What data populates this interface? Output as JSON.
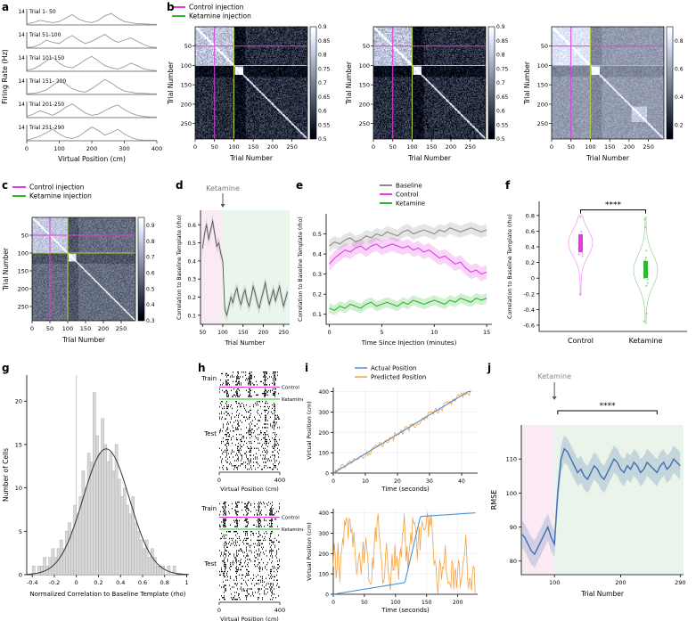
{
  "panels": {
    "a": {
      "label": "a"
    },
    "b": {
      "label": "b"
    },
    "c": {
      "label": "c"
    },
    "d": {
      "label": "d"
    },
    "e": {
      "label": "e"
    },
    "f": {
      "label": "f"
    },
    "g": {
      "label": "g"
    },
    "h": {
      "label": "h"
    },
    "i": {
      "label": "i"
    },
    "j": {
      "label": "j"
    }
  },
  "colors": {
    "control": "#e33ae3",
    "ketamine": "#2eb82e",
    "ketamine_line": "#b4d438",
    "baseline": "#8a8a8a",
    "actual": "#4a90d2",
    "predicted": "#f5a142",
    "rmse": "#3f6fae"
  },
  "chart_data": [
    {
      "id": "a",
      "type": "line-stack",
      "ylabel": "Firing Rate (Hz)",
      "xlabel": "Virtual Position (cm)",
      "xticks": [
        0,
        100,
        200,
        300,
        400
      ],
      "xlim": [
        0,
        400
      ],
      "ymax": 14,
      "ytick_label": "14",
      "line_color": "#9a9a9a",
      "traces": [
        {
          "label": "Trial 1- 50",
          "values": [
            1,
            2,
            4,
            3,
            2,
            3,
            6,
            9,
            5,
            3,
            2,
            4,
            8,
            10,
            6,
            3,
            2,
            1,
            1,
            0.5,
            0.5
          ]
        },
        {
          "label": "Trial 51-100",
          "values": [
            0.5,
            1,
            3,
            7,
            5,
            4,
            8,
            11,
            7,
            4,
            6,
            9,
            12,
            8,
            5,
            7,
            9,
            6,
            3,
            1,
            0.5
          ]
        },
        {
          "label": "Trial 101-150",
          "values": [
            1,
            2,
            5,
            9,
            12,
            7,
            4,
            3,
            6,
            10,
            13,
            9,
            5,
            3,
            2,
            4,
            7,
            5,
            2,
            1,
            0.5
          ]
        },
        {
          "label": "Trial 151- 200",
          "values": [
            0.5,
            1,
            2,
            4,
            8,
            12,
            9,
            5,
            3,
            2,
            5,
            9,
            13,
            10,
            6,
            3,
            2,
            1,
            1,
            0.5,
            0.5
          ]
        },
        {
          "label": "Trial 201-250",
          "values": [
            1,
            3,
            6,
            4,
            2,
            5,
            9,
            12,
            8,
            4,
            2,
            3,
            6,
            9,
            11,
            7,
            4,
            2,
            1,
            0.5,
            0.5
          ]
        },
        {
          "label": "Trial 251-290",
          "values": [
            0.5,
            2,
            4,
            7,
            10,
            6,
            3,
            2,
            4,
            8,
            12,
            9,
            5,
            7,
            10,
            6,
            3,
            1,
            0.5,
            0.5,
            0.5
          ]
        }
      ]
    },
    {
      "id": "b",
      "type": "heatmap-row",
      "legend": [
        {
          "label": "Control injection",
          "color_key": "control"
        },
        {
          "label": "Ketamine injection",
          "color_key": "ketamine"
        }
      ],
      "xlabel": "Trial Number",
      "ylabel": "Trial Number",
      "xticks": [
        0,
        50,
        100,
        150,
        200,
        250
      ],
      "yticks": [
        50,
        100,
        150,
        200,
        250
      ],
      "maps": [
        {
          "n": 290,
          "control": 50,
          "ketamine": 100,
          "cmin": 0.5,
          "cmax": 0.9,
          "cticks": [
            0.9,
            0.85,
            0.8,
            0.75,
            0.7,
            0.65,
            0.6,
            0.55,
            0.5
          ],
          "seed": 101
        },
        {
          "n": 290,
          "control": 50,
          "ketamine": 100,
          "cmin": 0.5,
          "cmax": 0.9,
          "cticks": [
            0.9,
            0.85,
            0.8,
            0.75,
            0.7,
            0.65,
            0.6,
            0.55,
            0.5
          ],
          "seed": 202
        },
        {
          "n": 290,
          "control": 50,
          "ketamine": 100,
          "cmin": 0.1,
          "cmax": 0.9,
          "cticks": [
            0.8,
            0.6,
            0.4,
            0.2
          ],
          "seed": 303,
          "block": [
            205,
            245
          ]
        }
      ]
    },
    {
      "id": "c",
      "type": "heatmap-single",
      "legend": [
        {
          "label": "Control injection",
          "color_key": "control"
        },
        {
          "label": "Ketamine injection",
          "color_key": "ketamine"
        }
      ],
      "xlabel": "Trial Number",
      "ylabel": "Trial Number",
      "xticks": [
        0,
        50,
        100,
        150,
        200,
        250
      ],
      "yticks": [
        50,
        100,
        150,
        200,
        250
      ],
      "map": {
        "n": 290,
        "control": 50,
        "ketamine": 100,
        "cmin": 0.3,
        "cmax": 0.95,
        "cticks": [
          0.9,
          0.8,
          0.7,
          0.6,
          0.5,
          0.4,
          0.3
        ],
        "seed": 404
      }
    },
    {
      "id": "d",
      "type": "line-annot",
      "ylabel": "Correlation to Baseline Template (rho)",
      "xlabel": "Trial Number",
      "annotation": "Ketamine",
      "annotation_x": 100,
      "xlim": [
        45,
        265
      ],
      "ylim": [
        0.05,
        0.68
      ],
      "xticks": [
        50,
        100,
        150,
        200,
        250
      ],
      "yticks": [
        0.1,
        0.2,
        0.3,
        0.4,
        0.5,
        0.6
      ],
      "regions": [
        {
          "from": 45,
          "to": 100,
          "color": "#faeaf6"
        },
        {
          "from": 100,
          "to": 265,
          "color": "#eaf5ec"
        }
      ],
      "line_color": "#555555",
      "band": 0.035,
      "x": [
        50,
        55,
        60,
        65,
        70,
        75,
        80,
        85,
        90,
        95,
        100,
        105,
        110,
        115,
        120,
        125,
        130,
        135,
        140,
        145,
        150,
        155,
        160,
        165,
        170,
        175,
        180,
        185,
        190,
        195,
        200,
        205,
        210,
        215,
        220,
        225,
        230,
        235,
        240,
        245,
        250,
        255,
        260
      ],
      "y": [
        0.47,
        0.55,
        0.6,
        0.52,
        0.57,
        0.62,
        0.55,
        0.48,
        0.5,
        0.44,
        0.4,
        0.13,
        0.1,
        0.15,
        0.2,
        0.17,
        0.22,
        0.25,
        0.19,
        0.16,
        0.21,
        0.24,
        0.18,
        0.15,
        0.2,
        0.26,
        0.22,
        0.17,
        0.14,
        0.19,
        0.23,
        0.28,
        0.21,
        0.16,
        0.2,
        0.24,
        0.18,
        0.22,
        0.26,
        0.2,
        0.15,
        0.19,
        0.23
      ]
    },
    {
      "id": "e",
      "type": "line-band",
      "ylabel": "Correlation to Baseline Template (rho)",
      "xlabel": "Time Since Injection (minutes)",
      "xlim": [
        -0.3,
        15.5
      ],
      "ylim": [
        0.05,
        0.6
      ],
      "xticks": [
        0,
        5,
        10,
        15
      ],
      "yticks": [
        0.1,
        0.2,
        0.3,
        0.4,
        0.5
      ],
      "x": [
        0,
        0.5,
        1,
        1.5,
        2,
        2.5,
        3,
        3.5,
        4,
        4.5,
        5,
        5.5,
        6,
        6.5,
        7,
        7.5,
        8,
        8.5,
        9,
        9.5,
        10,
        10.5,
        11,
        11.5,
        12,
        12.5,
        13,
        13.5,
        14,
        14.5,
        15
      ],
      "series": [
        {
          "name": "Baseline",
          "color_key": "baseline",
          "band": 0.03,
          "y": [
            0.44,
            0.46,
            0.45,
            0.47,
            0.48,
            0.46,
            0.47,
            0.49,
            0.48,
            0.5,
            0.49,
            0.51,
            0.5,
            0.49,
            0.51,
            0.52,
            0.5,
            0.51,
            0.52,
            0.51,
            0.5,
            0.52,
            0.51,
            0.53,
            0.52,
            0.51,
            0.52,
            0.53,
            0.52,
            0.51,
            0.52
          ]
        },
        {
          "name": "Control",
          "color_key": "control",
          "band": 0.035,
          "y": [
            0.35,
            0.38,
            0.4,
            0.42,
            0.41,
            0.43,
            0.44,
            0.42,
            0.44,
            0.45,
            0.43,
            0.44,
            0.45,
            0.44,
            0.43,
            0.44,
            0.42,
            0.43,
            0.41,
            0.42,
            0.4,
            0.38,
            0.39,
            0.37,
            0.35,
            0.36,
            0.33,
            0.31,
            0.32,
            0.3,
            0.31
          ]
        },
        {
          "name": "Ketamine",
          "color_key": "ketamine",
          "band": 0.025,
          "y": [
            0.13,
            0.12,
            0.14,
            0.13,
            0.15,
            0.14,
            0.13,
            0.15,
            0.16,
            0.14,
            0.15,
            0.16,
            0.15,
            0.14,
            0.16,
            0.15,
            0.17,
            0.16,
            0.15,
            0.16,
            0.17,
            0.16,
            0.15,
            0.17,
            0.16,
            0.18,
            0.17,
            0.16,
            0.18,
            0.17,
            0.18
          ]
        }
      ]
    },
    {
      "id": "f",
      "type": "violin",
      "ylabel": "Correlation to Baseline Template (rho)",
      "ylim": [
        -0.68,
        0.98
      ],
      "yticks": [
        -0.6,
        -0.4,
        -0.2,
        0,
        0.2,
        0.4,
        0.6,
        0.8
      ],
      "sig": "****",
      "groups": [
        {
          "label": "Control",
          "color_key": "control",
          "center": 0.45,
          "spread": 0.17,
          "min": -0.22,
          "max": 0.8,
          "box": [
            0.33,
            0.56
          ],
          "outliers": [
            -0.2,
            0.78
          ],
          "seed": 31
        },
        {
          "label": "Ketamine",
          "color_key": "ketamine",
          "center": 0.1,
          "spread": 0.2,
          "min": -0.58,
          "max": 0.78,
          "box": [
            0.0,
            0.22
          ],
          "outliers": [
            -0.55,
            -0.45,
            0.65,
            0.75
          ],
          "seed": 32
        }
      ]
    },
    {
      "id": "g",
      "type": "histogram",
      "ylabel": "Number of Cells",
      "xlabel": "Normalized Correlation to Baseline Template (rho)",
      "xlim": [
        -0.45,
        1.02
      ],
      "ylim": [
        0,
        23
      ],
      "xticks": [
        -0.4,
        -0.2,
        0,
        0.2,
        0.4,
        0.6,
        0.8,
        1
      ],
      "yticks": [
        0,
        5,
        10,
        15,
        20
      ],
      "bin_start": -0.4,
      "bin_width": 0.025,
      "counts": [
        1,
        0,
        1,
        1,
        2,
        1,
        2,
        3,
        2,
        3,
        4,
        3,
        5,
        6,
        5,
        8,
        7,
        9,
        12,
        10,
        14,
        13,
        21,
        16,
        14,
        18,
        15,
        13,
        14,
        12,
        15,
        11,
        9,
        10,
        8,
        7,
        9,
        6,
        5,
        4,
        3,
        4,
        2,
        3,
        2,
        1,
        1,
        1,
        0,
        1,
        0,
        1
      ],
      "curve": {
        "mean": 0.27,
        "sd": 0.21,
        "amp": 14.5
      },
      "vline_x": 0,
      "bar_color": "#d8d8d8",
      "bar_edge": "#b0b0b0",
      "curve_color": "#333333"
    },
    {
      "id": "h",
      "type": "raster-pair",
      "xlabel": "Virtual Position (cm)",
      "xticks": [
        0,
        400
      ],
      "labels": {
        "train": "Train",
        "test": "Test",
        "control": "Control",
        "ketamine": "Ketamine"
      },
      "panels": [
        {
          "seed": 51,
          "fields": [
            0.12,
            0.3,
            0.5,
            0.75,
            0.9
          ]
        },
        {
          "seed": 52,
          "fields": [
            0.08,
            0.28,
            0.45,
            0.65,
            0.85
          ]
        }
      ]
    },
    {
      "id": "i",
      "type": "decode-pair",
      "legend": [
        {
          "label": "Actual Position",
          "color_key": "actual"
        },
        {
          "label": "Predicted Position",
          "color_key": "predicted"
        }
      ],
      "plots": [
        {
          "ylabel": "Virtual Position (cm)",
          "xlabel": "Time (seconds)",
          "xlim": [
            0,
            45
          ],
          "ylim": [
            0,
            420
          ],
          "xticks": [
            0,
            10,
            20,
            30,
            40
          ],
          "yticks": [
            0,
            100,
            200,
            300,
            400
          ],
          "mode": "good",
          "seed": 61
        },
        {
          "ylabel": "Virtual Position (cm)",
          "xlabel": "Time (seconds)",
          "xlim": [
            0,
            232
          ],
          "ylim": [
            0,
            420
          ],
          "xticks": [
            0,
            50,
            100,
            150,
            200
          ],
          "yticks": [
            0,
            100,
            200,
            300,
            400
          ],
          "mode": "bad",
          "seed": 62
        }
      ]
    },
    {
      "id": "j",
      "type": "line-band-annot",
      "ylabel": "RMSE",
      "xlabel": "Trial Number",
      "annotation": "Ketamine",
      "annotation_x": 100,
      "sig": "****",
      "sig_span": [
        105,
        255
      ],
      "xlim": [
        50,
        295
      ],
      "ylim": [
        76,
        120
      ],
      "xticks": [
        100,
        200,
        290
      ],
      "yticks": [
        80,
        90,
        100,
        110
      ],
      "regions": [
        {
          "from": 50,
          "to": 100,
          "color": "#fbeaf3"
        },
        {
          "from": 100,
          "to": 295,
          "color": "#eaf4ea"
        }
      ],
      "band": 4,
      "color_key": "rmse",
      "x": [
        50,
        55,
        60,
        65,
        70,
        75,
        80,
        85,
        90,
        95,
        100,
        105,
        110,
        115,
        120,
        125,
        130,
        135,
        140,
        145,
        150,
        155,
        160,
        165,
        170,
        175,
        180,
        185,
        190,
        195,
        200,
        205,
        210,
        215,
        220,
        225,
        230,
        235,
        240,
        245,
        250,
        255,
        260,
        265,
        270,
        275,
        280,
        285,
        290
      ],
      "y": [
        88,
        87,
        85,
        83,
        82,
        84,
        86,
        88,
        90,
        87,
        85,
        100,
        110,
        113,
        112,
        110,
        108,
        106,
        107,
        105,
        104,
        106,
        108,
        107,
        105,
        104,
        106,
        108,
        110,
        109,
        107,
        106,
        108,
        107,
        109,
        108,
        106,
        107,
        109,
        108,
        107,
        106,
        108,
        109,
        107,
        108,
        110,
        109,
        108
      ]
    }
  ]
}
